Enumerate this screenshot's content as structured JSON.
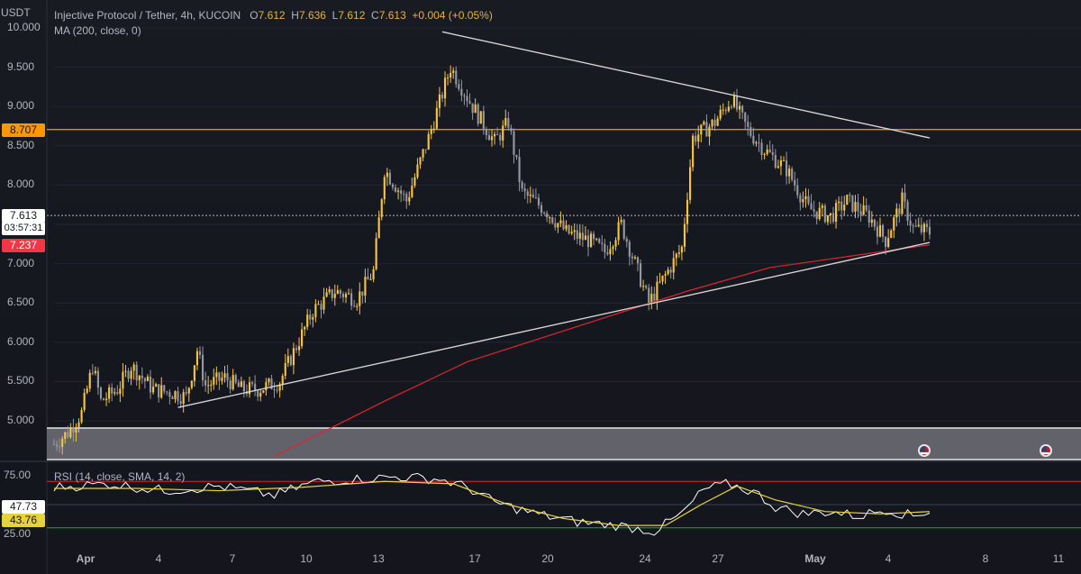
{
  "legend": {
    "symbol": "Injective Protocol / Tether, 4h, KUCOIN",
    "open_label": "O",
    "open": "7.612",
    "high_label": "H",
    "high": "7.636",
    "low_label": "L",
    "low": "7.612",
    "close_label": "C",
    "close": "7.613",
    "change": "+0.004 (+0.05%)",
    "ma_label": "MA (200, close, 0)",
    "rsi_label": "RSI (14, close, SMA, 14, 2)"
  },
  "axis": {
    "currency_fragment": "USDT",
    "y_ticks": [
      "10.000",
      "9.500",
      "9.000",
      "8.500",
      "8.000",
      "7.500",
      "7.000",
      "6.500",
      "6.000",
      "5.500",
      "5.000"
    ],
    "rsi_ticks": [
      "75.00",
      "25.00"
    ],
    "x_ticks": [
      "Apr",
      "4",
      "7",
      "10",
      "13",
      "17",
      "20",
      "24",
      "27",
      "May",
      "4",
      "8",
      "11"
    ]
  },
  "price_tags": {
    "horizontal_level": "8.707",
    "last_price": "7.613",
    "countdown": "03:57:31",
    "ma_value": "7.237",
    "rsi_value": "47.73",
    "rsi_ma_value": "43.76"
  },
  "colors": {
    "up": "#f5c542",
    "down": "#9598a1",
    "ma": "#e0242f",
    "level": "#ff9800",
    "rsi": "#ffffff",
    "rsi_ma": "#e6d23c",
    "rsi_upper": "#e0242f",
    "rsi_lower": "#2e9e3a",
    "trendline": "#d6d6d6"
  },
  "icons": [
    "us-flag-icon",
    "us-flag-icon"
  ],
  "chart_data": {
    "type": "candlestick",
    "title": "Injective Protocol / Tether, 4h, KUCOIN",
    "ylim": [
      4.6,
      10.1
    ],
    "horizontal_level": 8.707,
    "last_price": 7.613,
    "ma_200_last": 7.237,
    "x_dates": [
      "Apr",
      "4",
      "7",
      "10",
      "13",
      "17",
      "20",
      "24",
      "27",
      "May",
      "4",
      "8",
      "11"
    ],
    "close_path": [
      [
        0,
        4.7
      ],
      [
        5,
        4.85
      ],
      [
        10,
        5.1
      ],
      [
        14,
        5.7
      ],
      [
        17,
        5.25
      ],
      [
        23,
        5.4
      ],
      [
        28,
        5.7
      ],
      [
        36,
        5.4
      ],
      [
        44,
        5.35
      ],
      [
        48,
        5.3
      ],
      [
        52,
        5.9
      ],
      [
        55,
        5.45
      ],
      [
        62,
        5.55
      ],
      [
        68,
        5.4
      ],
      [
        74,
        5.4
      ],
      [
        82,
        5.5
      ],
      [
        88,
        5.95
      ],
      [
        94,
        6.4
      ],
      [
        102,
        6.65
      ],
      [
        110,
        6.55
      ],
      [
        116,
        6.9
      ],
      [
        120,
        8.2
      ],
      [
        128,
        7.8
      ],
      [
        136,
        8.6
      ],
      [
        140,
        9.05
      ],
      [
        144,
        9.5
      ],
      [
        152,
        9.0
      ],
      [
        160,
        8.55
      ],
      [
        165,
        8.8
      ],
      [
        170,
        7.9
      ],
      [
        178,
        7.7
      ],
      [
        186,
        7.4
      ],
      [
        194,
        7.3
      ],
      [
        200,
        7.15
      ],
      [
        206,
        7.5
      ],
      [
        210,
        7.1
      ],
      [
        216,
        6.5
      ],
      [
        222,
        6.85
      ],
      [
        228,
        7.2
      ],
      [
        232,
        8.6
      ],
      [
        240,
        8.8
      ],
      [
        246,
        9.1
      ],
      [
        252,
        8.7
      ],
      [
        258,
        8.45
      ],
      [
        266,
        8.2
      ],
      [
        274,
        7.7
      ],
      [
        282,
        7.6
      ],
      [
        288,
        7.8
      ],
      [
        296,
        7.6
      ],
      [
        302,
        7.3
      ],
      [
        308,
        7.8
      ],
      [
        312,
        7.45
      ],
      [
        318,
        7.4
      ]
    ],
    "trendlines": [
      {
        "name": "descending resistance",
        "from": [
          141,
          9.95
        ],
        "to": [
          318,
          8.6
        ]
      },
      {
        "name": "ascending support",
        "from": [
          45,
          5.17
        ],
        "to": [
          318,
          7.27
        ]
      }
    ],
    "ma_path": [
      [
        80,
        4.55
      ],
      [
        120,
        5.25
      ],
      [
        150,
        5.75
      ],
      [
        190,
        6.2
      ],
      [
        230,
        6.65
      ],
      [
        260,
        6.95
      ],
      [
        290,
        7.1
      ],
      [
        318,
        7.24
      ]
    ],
    "rsi": {
      "ylim": [
        15,
        85
      ],
      "upper": 70,
      "lower": 30,
      "last": 47.73,
      "ma_last": 43.76,
      "rsi_path": [
        [
          0,
          65
        ],
        [
          20,
          68
        ],
        [
          40,
          62
        ],
        [
          60,
          66
        ],
        [
          80,
          58
        ],
        [
          95,
          70
        ],
        [
          110,
          72
        ],
        [
          125,
          74
        ],
        [
          140,
          72
        ],
        [
          150,
          65
        ],
        [
          160,
          52
        ],
        [
          175,
          42
        ],
        [
          190,
          35
        ],
        [
          205,
          32
        ],
        [
          218,
          27
        ],
        [
          228,
          42
        ],
        [
          236,
          63
        ],
        [
          245,
          68
        ],
        [
          255,
          60
        ],
        [
          262,
          48
        ],
        [
          272,
          42
        ],
        [
          282,
          44
        ],
        [
          292,
          40
        ],
        [
          302,
          46
        ],
        [
          312,
          40
        ],
        [
          318,
          45
        ]
      ],
      "ma_path": [
        [
          0,
          64
        ],
        [
          30,
          64
        ],
        [
          60,
          62
        ],
        [
          90,
          65
        ],
        [
          120,
          70
        ],
        [
          145,
          68
        ],
        [
          165,
          50
        ],
        [
          185,
          38
        ],
        [
          205,
          32
        ],
        [
          222,
          32
        ],
        [
          235,
          50
        ],
        [
          248,
          66
        ],
        [
          262,
          54
        ],
        [
          280,
          44
        ],
        [
          300,
          42
        ],
        [
          318,
          44
        ]
      ]
    }
  }
}
